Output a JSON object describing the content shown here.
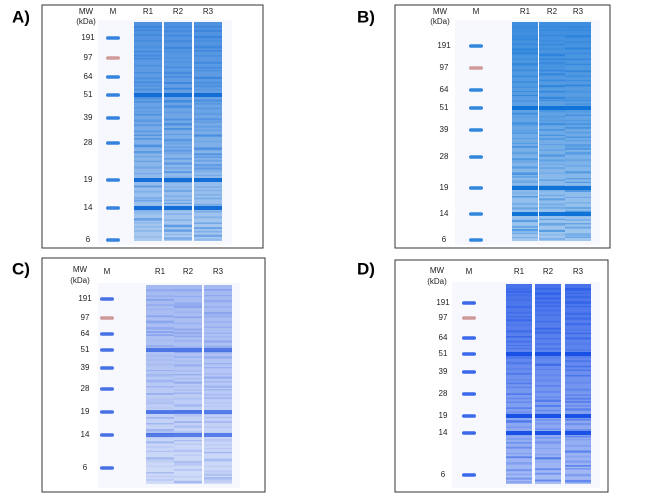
{
  "panels": [
    {
      "label": "A)",
      "mw_header": "MW",
      "unit": "(kDa)",
      "marker_lane": "M",
      "lanes": [
        "R1",
        "R2",
        "R3"
      ],
      "markers": [
        191,
        97,
        64,
        51,
        39,
        28,
        19,
        14,
        6
      ]
    },
    {
      "label": "B)",
      "mw_header": "MW",
      "unit": "(kDa)",
      "marker_lane": "M",
      "lanes": [
        "R1",
        "R2",
        "R3"
      ],
      "markers": [
        191,
        97,
        64,
        51,
        39,
        28,
        19,
        14,
        6
      ]
    },
    {
      "label": "C)",
      "mw_header": "MW",
      "unit": "(kDa)",
      "marker_lane": "M",
      "lanes": [
        "R1",
        "R2",
        "R3"
      ],
      "markers": [
        191,
        97,
        64,
        51,
        39,
        28,
        19,
        14,
        6
      ]
    },
    {
      "label": "D)",
      "mw_header": "MW",
      "unit": "(kDa)",
      "marker_lane": "M",
      "lanes": [
        "R1",
        "R2",
        "R3"
      ],
      "markers": [
        191,
        97,
        64,
        51,
        39,
        28,
        19,
        14,
        6
      ]
    }
  ]
}
